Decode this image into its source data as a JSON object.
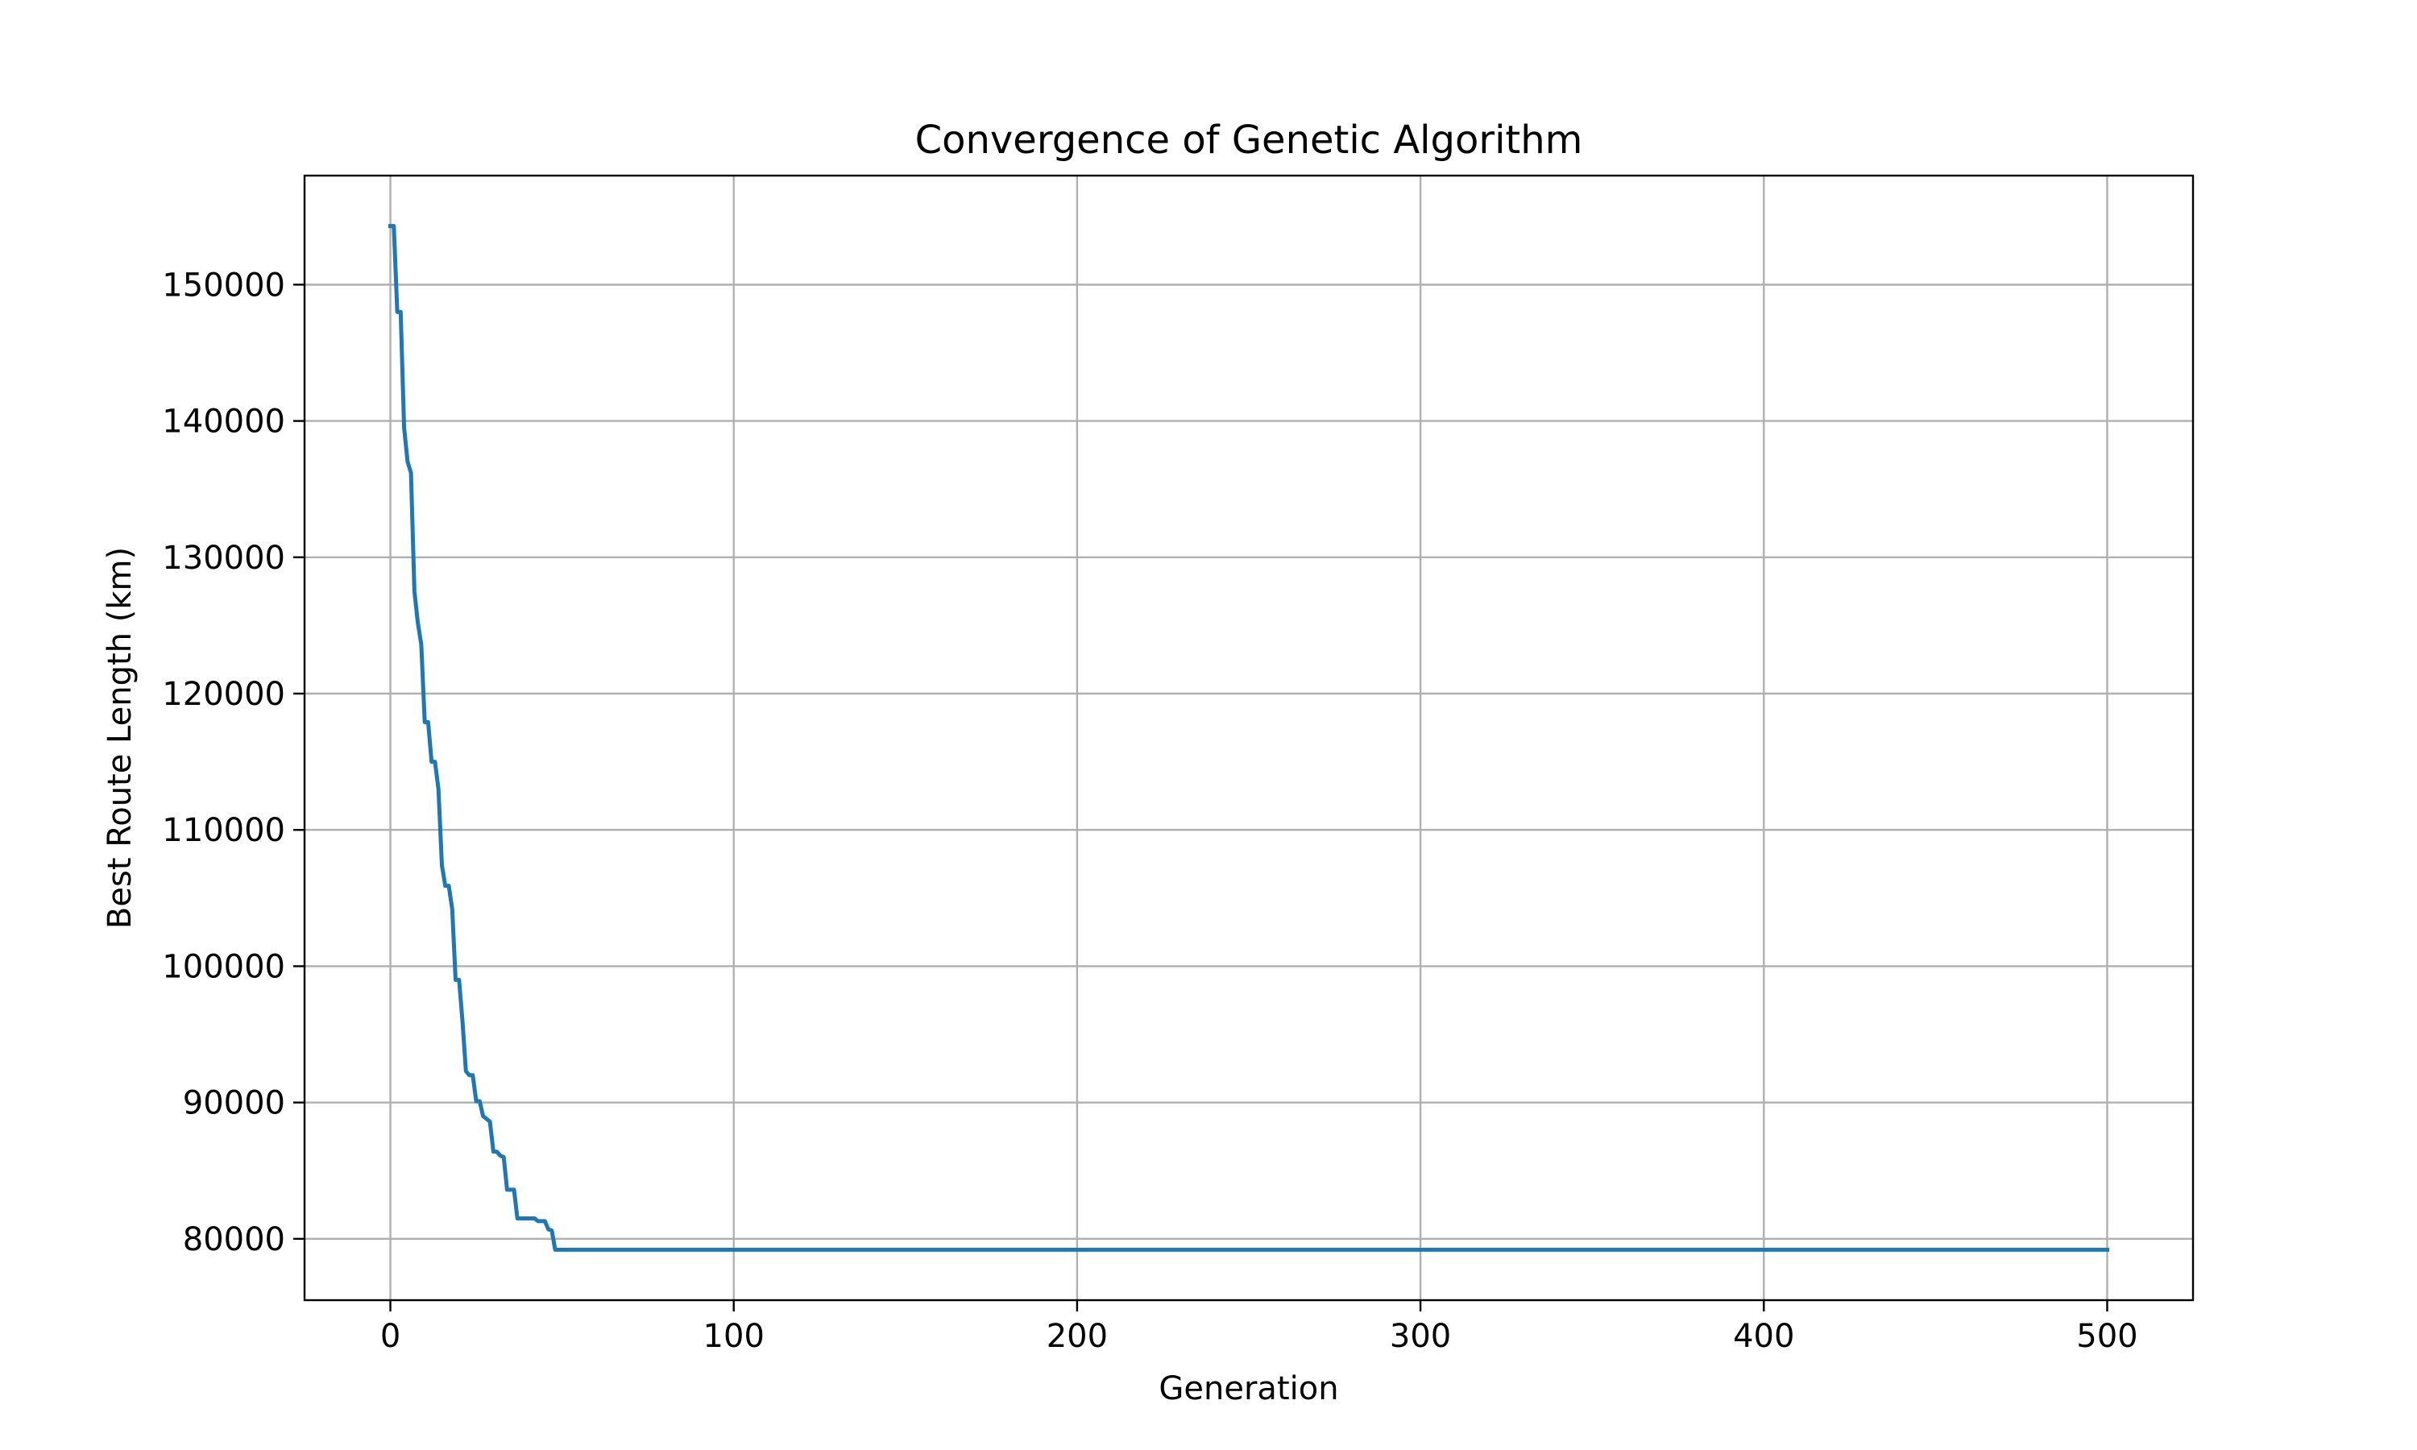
{
  "chart_data": {
    "type": "line",
    "title": "Convergence of Genetic Algorithm",
    "xlabel": "Generation",
    "ylabel": "Best Route Length (km)",
    "xlim": [
      -25,
      525
    ],
    "ylim": [
      75500,
      158000
    ],
    "grid": true,
    "x_ticks": [
      0,
      100,
      200,
      300,
      400,
      500
    ],
    "x_tick_labels": [
      "0",
      "100",
      "200",
      "300",
      "400",
      "500"
    ],
    "y_ticks": [
      80000,
      90000,
      100000,
      110000,
      120000,
      130000,
      140000,
      150000
    ],
    "y_tick_labels": [
      "80000",
      "90000",
      "100000",
      "110000",
      "120000",
      "130000",
      "140000",
      "150000"
    ],
    "colors": {
      "line": "#1f77b4",
      "grid": "#b0b0b0",
      "axes": "#000000"
    },
    "series": [
      {
        "x": [
          0,
          1,
          2,
          3,
          4,
          5,
          6,
          7,
          8,
          9,
          10,
          11,
          12,
          13,
          14,
          15,
          16,
          17,
          18,
          19,
          20,
          21,
          22,
          23,
          24,
          25,
          26,
          27,
          28,
          29,
          30,
          31,
          32,
          33,
          34,
          35,
          36,
          37,
          38,
          39,
          40,
          41,
          42,
          43,
          44,
          45,
          46,
          47,
          48,
          49,
          50,
          51,
          60,
          100,
          200,
          300,
          400,
          500
        ],
        "y": [
          154300,
          154300,
          148000,
          148000,
          139500,
          137000,
          136200,
          127500,
          125200,
          123600,
          117900,
          117900,
          115000,
          115000,
          113000,
          107400,
          105900,
          105900,
          104200,
          99000,
          99000,
          96000,
          92300,
          92000,
          92000,
          90100,
          90100,
          89000,
          88800,
          88600,
          86400,
          86400,
          86100,
          86000,
          83600,
          83600,
          83600,
          81500,
          81500,
          81500,
          81500,
          81500,
          81500,
          81300,
          81300,
          81300,
          80700,
          80600,
          79200,
          79200,
          79200,
          79200,
          79200,
          79200,
          79200,
          79200,
          79200,
          79200
        ]
      }
    ]
  }
}
